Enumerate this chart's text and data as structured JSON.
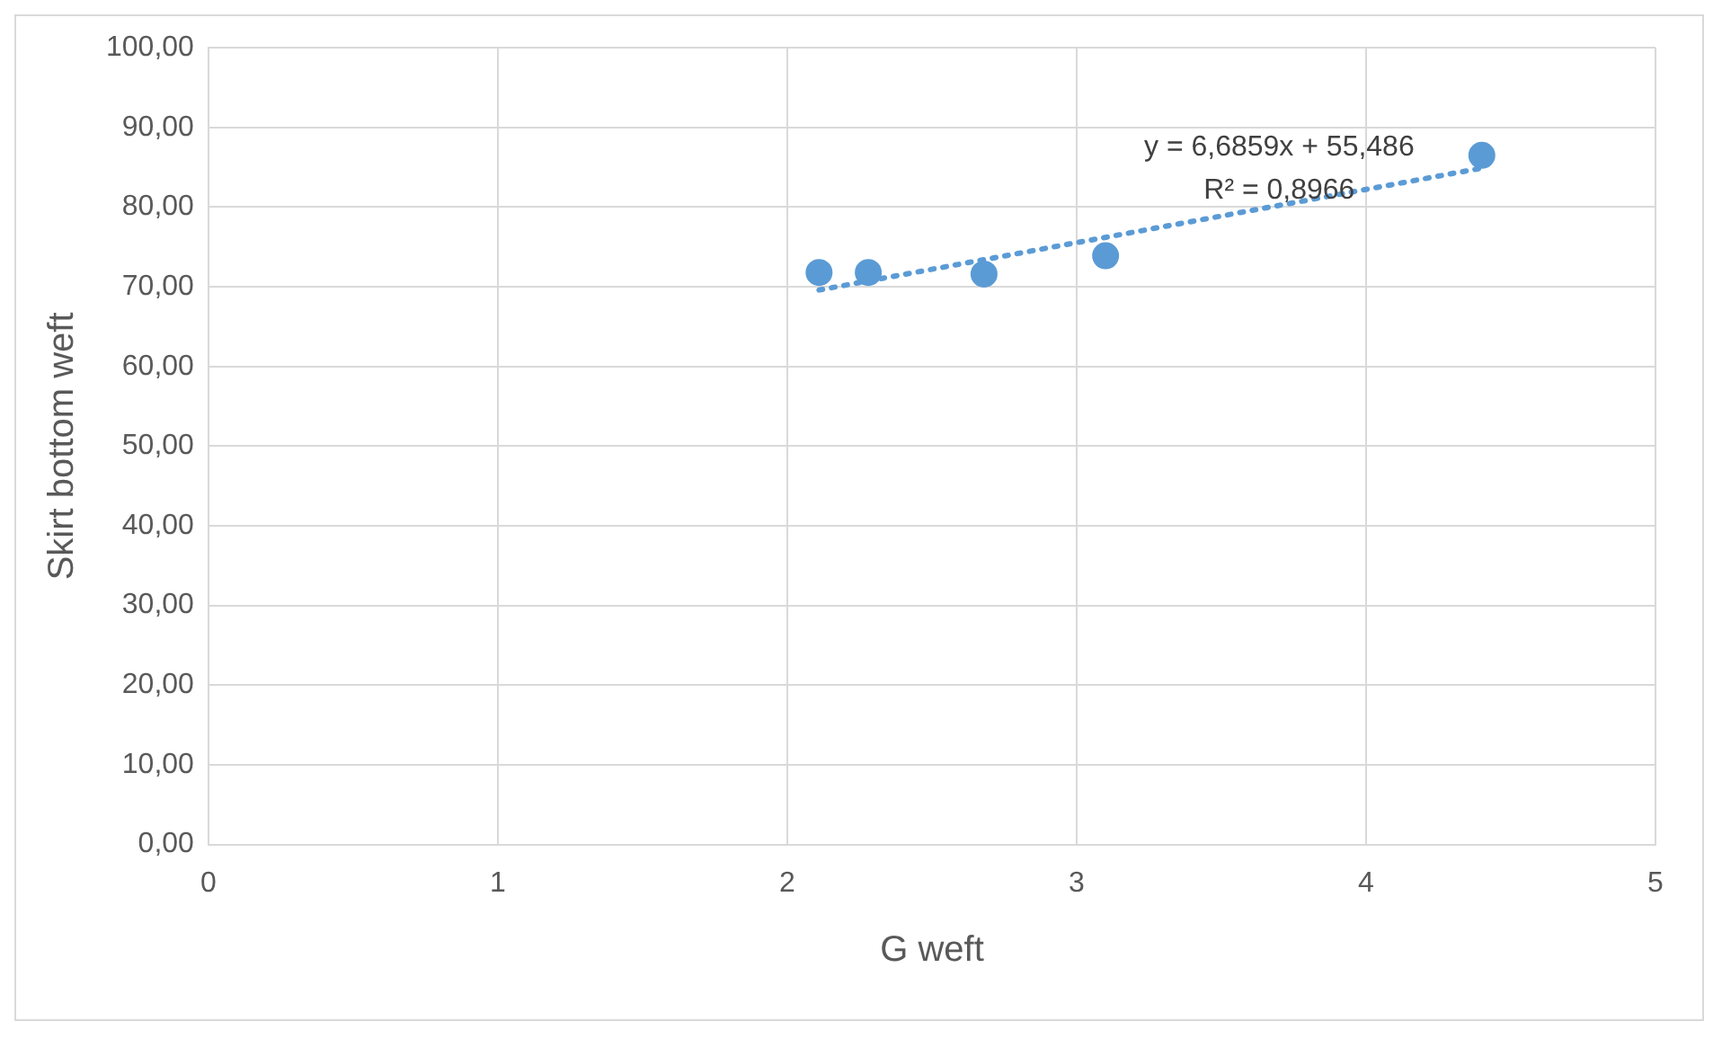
{
  "chart_data": {
    "type": "scatter",
    "xlabel": "G weft",
    "ylabel": "Skirt bottom weft",
    "series": [
      {
        "type": "scatter",
        "color": "#5b9bd5",
        "marker": "circle",
        "x": [
          2.11,
          2.28,
          2.68,
          3.1,
          4.4
        ],
        "values": [
          71.8,
          71.8,
          71.6,
          73.9,
          86.5
        ]
      },
      {
        "type": "line",
        "color": "#5b9bd5",
        "marker": "none",
        "line_style": "dotted",
        "x": [
          2.11,
          4.4
        ],
        "values": [
          69.6,
          84.9
        ]
      }
    ],
    "annotations": [
      "y = 6,6859x + 55,486",
      "R² = 0,8966"
    ],
    "xlim": [
      0,
      5
    ],
    "xticks": [
      0,
      1,
      2,
      3,
      4,
      5
    ],
    "ylim": [
      0,
      100
    ],
    "yticks": [
      {
        "value": 0,
        "label": "0,00"
      },
      {
        "value": 10,
        "label": "10,00"
      },
      {
        "value": 20,
        "label": "20,00"
      },
      {
        "value": 30,
        "label": "30,00"
      },
      {
        "value": 40,
        "label": "40,00"
      },
      {
        "value": 50,
        "label": "50,00"
      },
      {
        "value": 60,
        "label": "60,00"
      },
      {
        "value": 70,
        "label": "70,00"
      },
      {
        "value": 80,
        "label": "80,00"
      },
      {
        "value": 90,
        "label": "90,00"
      },
      {
        "value": 100,
        "label": "100,00"
      }
    ],
    "grid": true,
    "legend": false
  }
}
